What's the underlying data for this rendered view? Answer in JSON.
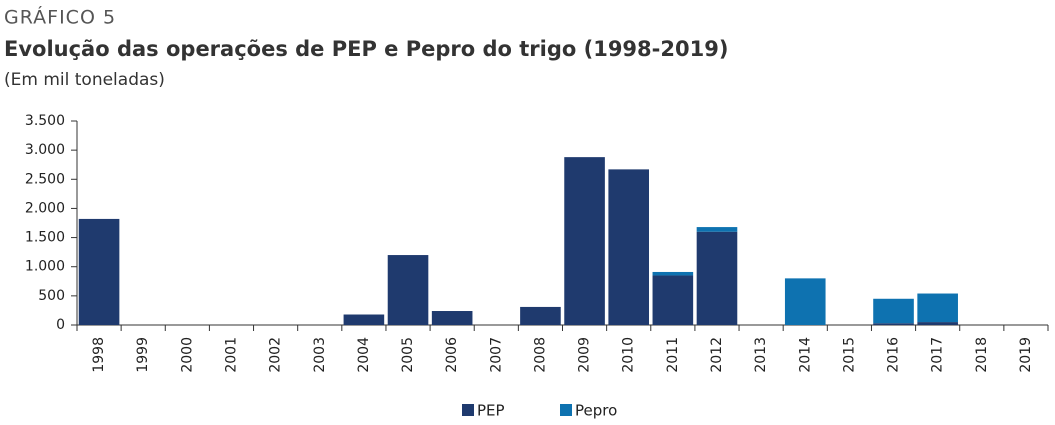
{
  "chart_data": {
    "type": "stacked_bar",
    "chart_label": "GRÁFICO 5",
    "title": "Evolução das operações de PEP e Pepro do trigo (1998-2019)",
    "subtitle": "(Em mil toneladas)",
    "categories": [
      "1998",
      "1999",
      "2000",
      "2001",
      "2002",
      "2003",
      "2004",
      "2005",
      "2006",
      "2007",
      "2008",
      "2009",
      "2010",
      "2011",
      "2012",
      "2013",
      "2014",
      "2015",
      "2016",
      "2017",
      "2018",
      "2019"
    ],
    "series": [
      {
        "name": "PEP",
        "color": "#1f3a6e",
        "values": [
          1820,
          0,
          0,
          0,
          0,
          0,
          180,
          1200,
          240,
          0,
          310,
          2880,
          2670,
          850,
          1600,
          0,
          0,
          0,
          30,
          50,
          0,
          0
        ]
      },
      {
        "name": "Pepro",
        "color": "#0e72b0",
        "values": [
          0,
          0,
          0,
          0,
          0,
          0,
          0,
          0,
          0,
          0,
          0,
          0,
          0,
          60,
          80,
          0,
          800,
          0,
          420,
          490,
          0,
          0
        ]
      }
    ],
    "ylim": [
      0,
      3500
    ],
    "yticks": [
      0,
      500,
      {
        "value": 1000,
        "label": "1.000"
      },
      {
        "value": 1500,
        "label": "1.500"
      },
      {
        "value": 2000,
        "label": "2.000"
      },
      {
        "value": 2500,
        "label": "2.500"
      },
      {
        "value": 3000,
        "label": "3.000"
      },
      {
        "value": 3500,
        "label": "3.500"
      }
    ],
    "legend": "bottom"
  }
}
